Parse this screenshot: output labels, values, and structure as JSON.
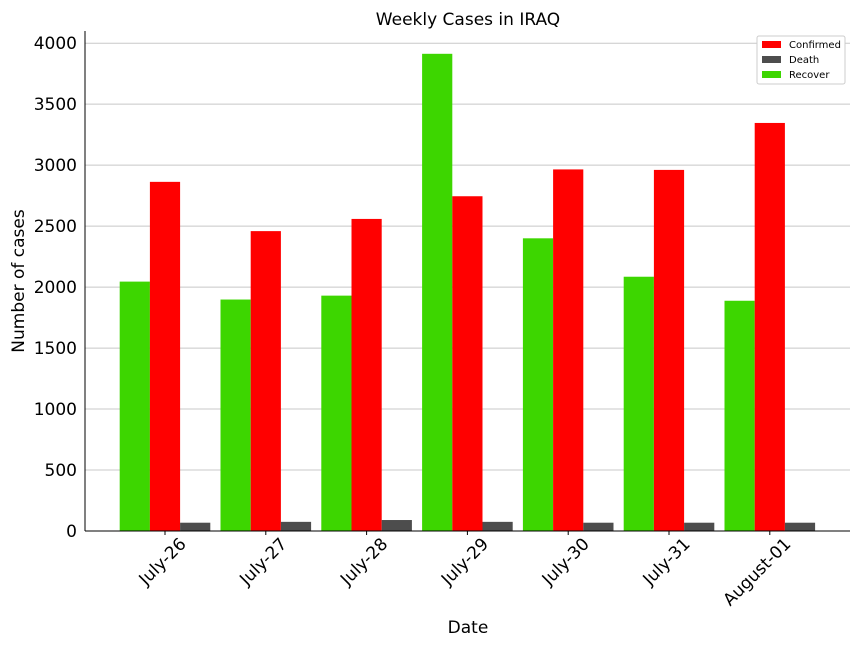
{
  "chart_data": {
    "type": "bar",
    "title": "Weekly Cases in IRAQ",
    "xlabel": "Date",
    "ylabel": "Number of cases",
    "categories": [
      "July-26",
      "July-27",
      "July-28",
      "July-29",
      "July-30",
      "July-31",
      "August-01"
    ],
    "series": [
      {
        "name": "Recover",
        "color": "#3dd600",
        "values": [
          2045,
          1898,
          1930,
          3913,
          2400,
          2085,
          1888
        ]
      },
      {
        "name": "Confirmed",
        "color": "#ff0000",
        "values": [
          2863,
          2459,
          2559,
          2745,
          2965,
          2961,
          3346
        ]
      },
      {
        "name": "Death",
        "color": "#4d4d4d",
        "values": [
          68,
          75,
          90,
          75,
          68,
          68,
          68
        ]
      }
    ],
    "legend_order": [
      "Confirmed",
      "Death",
      "Recover"
    ],
    "ylim": [
      0,
      4100
    ],
    "yticks": [
      "0",
      "500",
      "1000",
      "1500",
      "2000",
      "2500",
      "3000",
      "3500",
      "4000"
    ],
    "grid": "horizontal",
    "legend_position": "top-right"
  }
}
